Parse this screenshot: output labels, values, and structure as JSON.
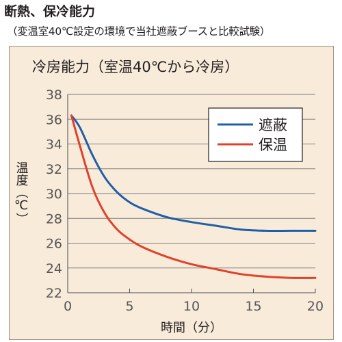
{
  "header": {
    "title": "断熱、保冷能力",
    "subtitle": "（変温室40℃設定の環境で当社遮蔽ブースと比較試験）"
  },
  "chart_data": {
    "type": "line",
    "title": "冷房能力（室温40℃から冷房）",
    "xlabel": "時間（分）",
    "ylabel": "温度（℃）",
    "xlim": [
      0,
      20
    ],
    "ylim": [
      22,
      38
    ],
    "xticks": [
      0,
      5,
      10,
      15,
      20
    ],
    "yticks": [
      22,
      24,
      26,
      28,
      30,
      32,
      34,
      36,
      38
    ],
    "grid": "horizontal",
    "legend": "top-right",
    "series": [
      {
        "name": "遮蔽",
        "color": "#1f5fa8",
        "x": [
          0.3,
          1,
          2,
          3,
          4,
          5,
          6,
          8,
          10,
          12,
          14,
          16,
          18,
          20
        ],
        "y": [
          36.3,
          35.3,
          33.1,
          31.3,
          30.1,
          29.3,
          28.8,
          28.1,
          27.7,
          27.4,
          27.1,
          27.0,
          27.0,
          27.0
        ]
      },
      {
        "name": "保温",
        "color": "#e0412b",
        "x": [
          0.3,
          1,
          2,
          3,
          4,
          5,
          6,
          8,
          10,
          12,
          14,
          16,
          18,
          20
        ],
        "y": [
          36.3,
          33.8,
          30.5,
          28.4,
          27.1,
          26.3,
          25.7,
          24.9,
          24.3,
          23.9,
          23.5,
          23.3,
          23.2,
          23.2
        ]
      }
    ]
  }
}
